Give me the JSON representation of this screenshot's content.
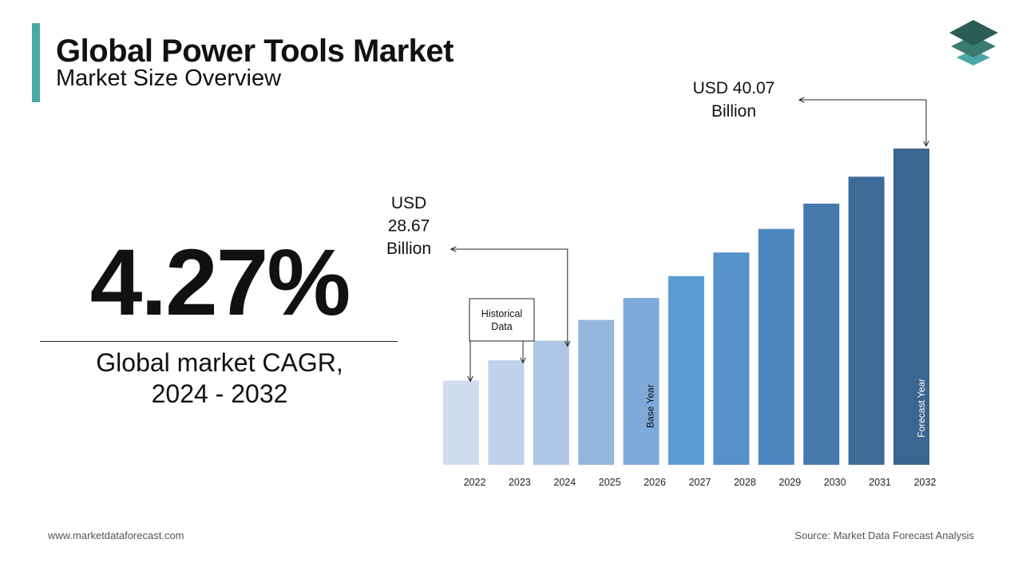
{
  "header": {
    "title": "Global Power Tools Market",
    "subtitle": "Market Size Overview"
  },
  "cagr": {
    "value": "4.27%",
    "label_line1": "Global market CAGR,",
    "label_line2": "2024 - 2032"
  },
  "footer": {
    "website": "www.marketdataforecast.com",
    "source": "Source: Market Data Forecast Analysis"
  },
  "chart_data": {
    "type": "bar",
    "categories": [
      "2022",
      "2023",
      "2024",
      "2025",
      "2026",
      "2027",
      "2028",
      "2029",
      "2030",
      "2031",
      "2032"
    ],
    "values": [
      26.3,
      27.5,
      28.67,
      29.9,
      31.2,
      32.5,
      33.9,
      35.3,
      36.8,
      38.4,
      40.07
    ],
    "colors": [
      "#d1dcee",
      "#c0d2eb",
      "#adc6e6",
      "#94b6dd",
      "#7ea9d9",
      "#5d9bd5",
      "#5591cb",
      "#4d87bf",
      "#4679ae",
      "#3f6b99",
      "#3a6690"
    ],
    "ylim": [
      21.3,
      40.07
    ],
    "annotations": {
      "start": "USD 28.67 Billion",
      "start_lines": [
        "USD",
        "28.67",
        "Billion"
      ],
      "end": "USD 40.07 Billion",
      "end_lines": [
        "USD 40.07",
        "Billion"
      ],
      "historical_lines": [
        "Historical",
        "Data"
      ],
      "base_year": "Base Year",
      "forecast_year": "Forecast Year"
    },
    "grid": false,
    "legend": "none"
  }
}
